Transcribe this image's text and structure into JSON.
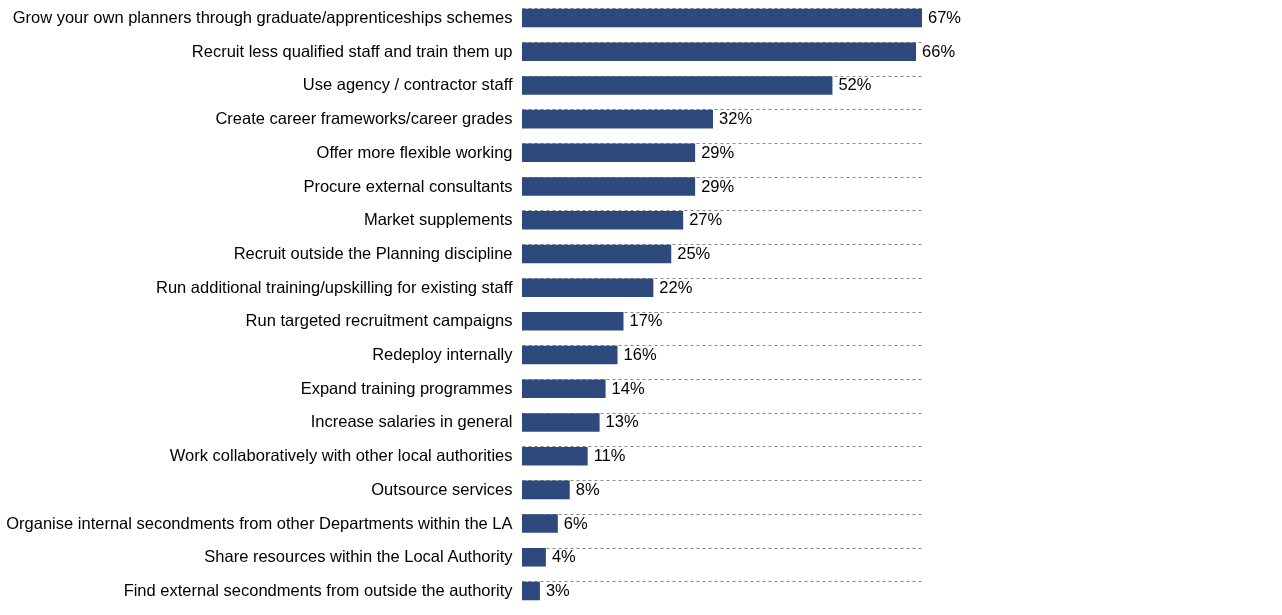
{
  "chart_data": {
    "type": "bar",
    "orientation": "horizontal",
    "categories": [
      "Grow your own planners through graduate/apprenticeships schemes",
      "Recruit less qualified staff and train them up",
      "Use agency / contractor staff",
      "Create career frameworks/career grades",
      "Offer more flexible working",
      "Procure external consultants",
      "Market supplements",
      "Recruit outside the Planning discipline",
      "Run additional training/upskilling for existing staff",
      "Run targeted recruitment campaigns",
      "Redeploy internally",
      "Expand training programmes",
      "Increase salaries in general",
      "Work collaboratively with other local authorities",
      "Outsource services",
      "Organise internal secondments from other Departments within the LA",
      "Share resources within the Local Authority",
      "Find external secondments from outside the authority"
    ],
    "values": [
      67,
      66,
      52,
      32,
      29,
      29,
      27,
      25,
      22,
      17,
      16,
      14,
      13,
      11,
      8,
      6,
      4,
      3
    ],
    "value_labels": [
      "67%",
      "66%",
      "52%",
      "32%",
      "29%",
      "29%",
      "27%",
      "25%",
      "22%",
      "17%",
      "16%",
      "14%",
      "13%",
      "11%",
      "8%",
      "6%",
      "4%",
      "3%"
    ],
    "color": "#2e4a7d",
    "grid": "y"
  }
}
